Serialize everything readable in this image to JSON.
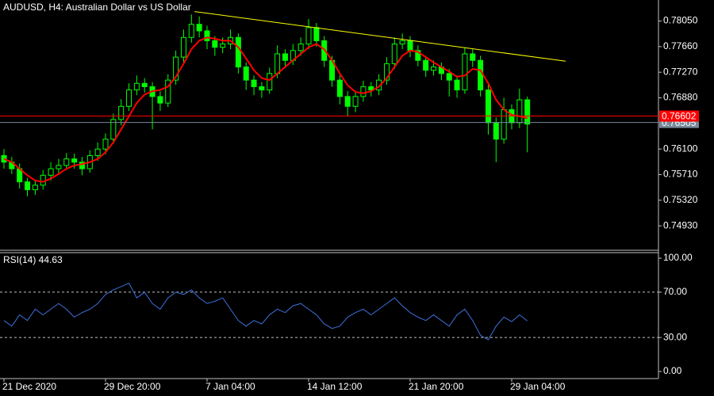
{
  "chart_data": [
    {
      "type": "candlestick",
      "title": "AUDUSD, H4:  Australian Dollar vs US Dollar",
      "categories": [
        "21 Dec 2020",
        null,
        null,
        null,
        null,
        null,
        null,
        null,
        null,
        null,
        null,
        null,
        null,
        "29 Dec 20:00",
        null,
        null,
        null,
        null,
        null,
        null,
        null,
        null,
        null,
        null,
        null,
        null,
        "7 Jan 04:00",
        null,
        null,
        null,
        null,
        null,
        null,
        null,
        null,
        null,
        null,
        null,
        null,
        "14 Jan 12:00",
        null,
        null,
        null,
        null,
        null,
        null,
        null,
        null,
        null,
        null,
        null,
        null,
        "21 Jan 20:00",
        null,
        null,
        null,
        null,
        null,
        null,
        null,
        null,
        null,
        null,
        null,
        null,
        "29 Jan 04:00",
        null,
        null
      ],
      "color": "#00ff00",
      "open": [
        0.76,
        0.759,
        0.758,
        0.756,
        0.7548,
        0.7555,
        0.757,
        0.758,
        0.7585,
        0.7595,
        0.759,
        0.758,
        0.76,
        0.761,
        0.7625,
        0.7655,
        0.7675,
        0.77,
        0.771,
        0.7705,
        0.769,
        0.768,
        0.7715,
        0.775,
        0.778,
        0.78,
        0.779,
        0.7775,
        0.7765,
        0.777,
        0.778,
        0.7735,
        0.7715,
        0.7705,
        0.77,
        0.7725,
        0.7755,
        0.7745,
        0.776,
        0.777,
        0.7795,
        0.7775,
        0.7745,
        0.7715,
        0.769,
        0.7675,
        0.769,
        0.7705,
        0.77,
        0.7715,
        0.774,
        0.777,
        0.7775,
        0.776,
        0.7745,
        0.773,
        0.7735,
        0.7725,
        0.7715,
        0.77,
        0.7755,
        0.7745,
        0.77,
        0.765,
        0.7625,
        0.767,
        0.765,
        0.7685
      ],
      "high": [
        0.761,
        0.7598,
        0.7588,
        0.7566,
        0.7563,
        0.7578,
        0.759,
        0.7595,
        0.7604,
        0.7603,
        0.7598,
        0.7608,
        0.762,
        0.7634,
        0.7664,
        0.7686,
        0.771,
        0.7722,
        0.7718,
        0.7712,
        0.7698,
        0.7724,
        0.776,
        0.7792,
        0.7815,
        0.7812,
        0.7798,
        0.7782,
        0.778,
        0.7792,
        0.7786,
        0.7742,
        0.7722,
        0.7712,
        0.7734,
        0.7768,
        0.7762,
        0.777,
        0.778,
        0.7808,
        0.7802,
        0.7782,
        0.7752,
        0.7722,
        0.7698,
        0.7698,
        0.7714,
        0.7712,
        0.7724,
        0.775,
        0.778,
        0.7786,
        0.7782,
        0.7768,
        0.7752,
        0.7745,
        0.7742,
        0.7732,
        0.7722,
        0.7765,
        0.7762,
        0.7752,
        0.7708,
        0.7658,
        0.7688,
        0.7678,
        0.7702,
        0.769
      ],
      "low": [
        0.758,
        0.7572,
        0.755,
        0.7538,
        0.754,
        0.7548,
        0.7562,
        0.7572,
        0.7578,
        0.758,
        0.757,
        0.7574,
        0.7592,
        0.7602,
        0.7618,
        0.7646,
        0.7668,
        0.7692,
        0.7696,
        0.764,
        0.7668,
        0.7674,
        0.7708,
        0.7742,
        0.7772,
        0.778,
        0.7762,
        0.7752,
        0.7756,
        0.7762,
        0.7725,
        0.77,
        0.7692,
        0.7688,
        0.7694,
        0.7718,
        0.7736,
        0.7738,
        0.7752,
        0.7762,
        0.7766,
        0.7735,
        0.7705,
        0.7678,
        0.766,
        0.7666,
        0.7682,
        0.769,
        0.7692,
        0.7708,
        0.7732,
        0.7762,
        0.775,
        0.7736,
        0.772,
        0.7722,
        0.7715,
        0.769,
        0.7688,
        0.7694,
        0.7735,
        0.769,
        0.7632,
        0.759,
        0.7618,
        0.764,
        0.7642,
        0.7605
      ],
      "close": [
        0.759,
        0.758,
        0.756,
        0.7548,
        0.7555,
        0.757,
        0.758,
        0.7585,
        0.7595,
        0.759,
        0.758,
        0.76,
        0.761,
        0.7625,
        0.7655,
        0.7675,
        0.77,
        0.771,
        0.7705,
        0.769,
        0.768,
        0.7715,
        0.775,
        0.778,
        0.78,
        0.779,
        0.7775,
        0.7765,
        0.777,
        0.778,
        0.7735,
        0.7715,
        0.7705,
        0.77,
        0.7725,
        0.7755,
        0.7745,
        0.776,
        0.777,
        0.7795,
        0.7775,
        0.7745,
        0.7715,
        0.769,
        0.7675,
        0.769,
        0.7705,
        0.77,
        0.7715,
        0.774,
        0.777,
        0.7775,
        0.776,
        0.7745,
        0.773,
        0.7735,
        0.7725,
        0.7715,
        0.77,
        0.7755,
        0.7745,
        0.77,
        0.765,
        0.7625,
        0.767,
        0.765,
        0.7685,
        0.7648
      ],
      "ma": {
        "color": "#ff0000",
        "values": [
          0.7595,
          0.759,
          0.758,
          0.757,
          0.7562,
          0.756,
          0.7565,
          0.7572,
          0.758,
          0.7585,
          0.7587,
          0.759,
          0.7595,
          0.7605,
          0.762,
          0.764,
          0.766,
          0.768,
          0.7693,
          0.7698,
          0.77,
          0.7705,
          0.772,
          0.774,
          0.7762,
          0.7775,
          0.778,
          0.7778,
          0.7775,
          0.7775,
          0.7765,
          0.7748,
          0.773,
          0.7718,
          0.7715,
          0.7725,
          0.7735,
          0.7745,
          0.7755,
          0.7765,
          0.777,
          0.7762,
          0.7745,
          0.7725,
          0.7707,
          0.7697,
          0.7695,
          0.7698,
          0.7705,
          0.7718,
          0.7735,
          0.7752,
          0.776,
          0.7758,
          0.775,
          0.7742,
          0.7735,
          0.7728,
          0.772,
          0.7722,
          0.7732,
          0.773,
          0.771,
          0.7685,
          0.767,
          0.7662,
          0.766,
          0.7657
        ]
      },
      "trendline": {
        "color": "#ffff00",
        "x": [
          24.4,
          71.9
        ],
        "values": [
          0.78194,
          0.77438
        ]
      },
      "price_lines": [
        {
          "value": 0.76602,
          "label": "0.76602",
          "color": "#ff0000"
        },
        {
          "value": 0.76505,
          "label": "0.76505",
          "color": "#778899"
        }
      ],
      "ylim": [
        0.7457,
        0.7837
      ],
      "yticks": [
        {
          "value": 0.7805,
          "label": "0.78050"
        },
        {
          "value": 0.7766,
          "label": "0.77660"
        },
        {
          "value": 0.7727,
          "label": "0.77270"
        },
        {
          "value": 0.7688,
          "label": "0.76880"
        },
        {
          "value": 0.761,
          "label": "0.76100"
        },
        {
          "value": 0.7571,
          "label": "0.75710"
        },
        {
          "value": 0.7532,
          "label": "0.75320"
        },
        {
          "value": 0.7493,
          "label": "0.74930"
        }
      ]
    },
    {
      "type": "line",
      "title": "RSI(14) 44.63",
      "series": [
        {
          "color": "#3d6fdb",
          "values": [
            45,
            40,
            50,
            45,
            55,
            50,
            55,
            60,
            55,
            48,
            52,
            55,
            60,
            68,
            72,
            75,
            78,
            65,
            70,
            60,
            55,
            65,
            70,
            68,
            72,
            65,
            60,
            62,
            65,
            55,
            45,
            40,
            45,
            42,
            50,
            55,
            52,
            58,
            60,
            55,
            50,
            42,
            38,
            40,
            48,
            52,
            55,
            50,
            55,
            60,
            65,
            58,
            52,
            48,
            45,
            50,
            45,
            40,
            50,
            55,
            45,
            32,
            28,
            40,
            48,
            44,
            50,
            44.63
          ]
        }
      ],
      "levels": [
        70,
        30
      ],
      "ylim": [
        -6.25,
        104.9
      ],
      "yticks": [
        {
          "value": 100,
          "label": "100.00"
        },
        {
          "value": 70,
          "label": "70.00"
        },
        {
          "value": 30,
          "label": "30.00"
        },
        {
          "value": 0,
          "label": "0.00"
        }
      ]
    }
  ]
}
